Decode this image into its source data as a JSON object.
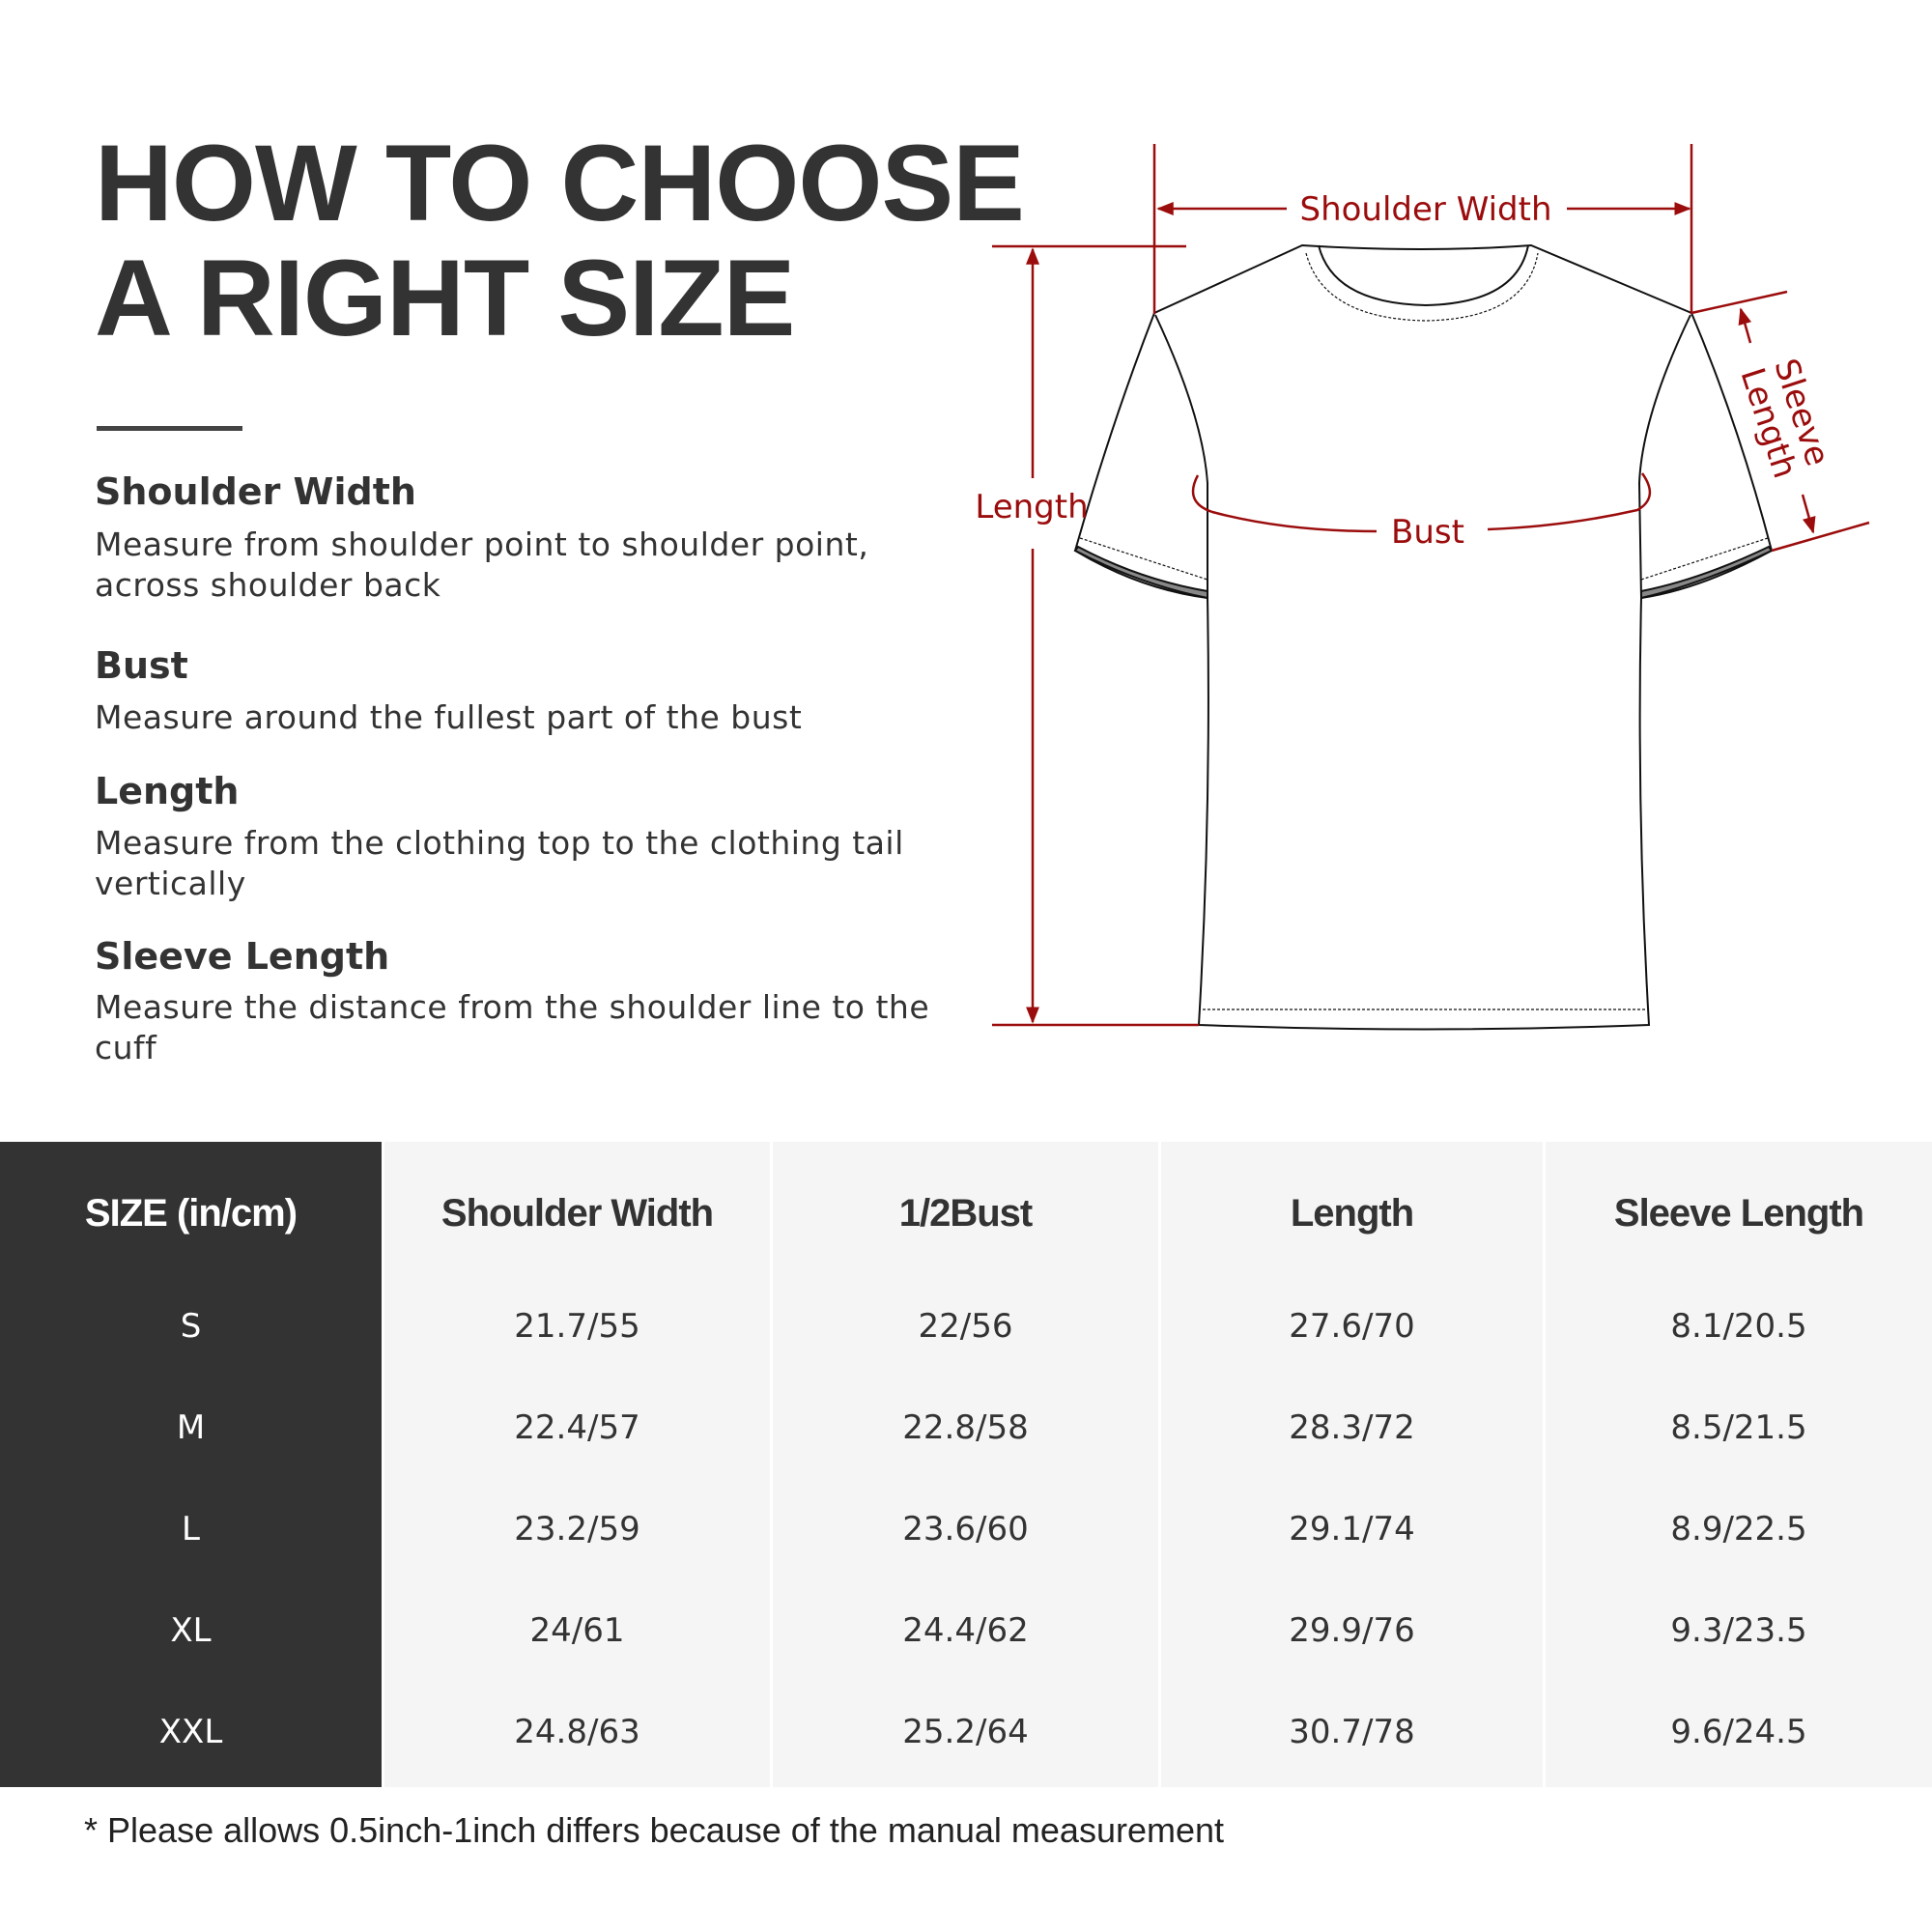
{
  "title": {
    "line1": "HOW TO CHOOSE",
    "line2": "A RIGHT SIZE"
  },
  "guide": [
    {
      "heading": "Shoulder Width",
      "lines": [
        "Measure from shoulder point to shoulder point,",
        "across shoulder back"
      ]
    },
    {
      "heading": "Bust",
      "lines": [
        "Measure around the fullest part of the bust"
      ]
    },
    {
      "heading": "Length",
      "lines": [
        "Measure from the clothing top to the clothing tail",
        "vertically"
      ]
    },
    {
      "heading": "Sleeve Length",
      "lines": [
        "Measure the distance from the shoulder line to the cuff"
      ]
    }
  ],
  "diagram": {
    "shoulder_width": "Shoulder Width",
    "length": "Length",
    "bust": "Bust",
    "sleeve1": "Sleeve",
    "sleeve2": "Length",
    "accent": "#9b0c0c"
  },
  "table": {
    "headers": [
      "SIZE  (in/cm)",
      "Shoulder Width",
      "1/2Bust",
      "Length",
      "Sleeve Length"
    ],
    "rows": [
      [
        "S",
        "21.7/55",
        "22/56",
        "27.6/70",
        "8.1/20.5"
      ],
      [
        "M",
        "22.4/57",
        "22.8/58",
        "28.3/72",
        "8.5/21.5"
      ],
      [
        "L",
        "23.2/59",
        "23.6/60",
        "29.1/74",
        "8.9/22.5"
      ],
      [
        "XL",
        "24/61",
        "24.4/62",
        "29.9/76",
        "9.3/23.5"
      ],
      [
        "XXL",
        "24.8/63",
        "25.2/64",
        "30.7/78",
        "9.6/24.5"
      ]
    ]
  },
  "footnote": "* Please allows 0.5inch-1inch differs because of the  manual measurement"
}
